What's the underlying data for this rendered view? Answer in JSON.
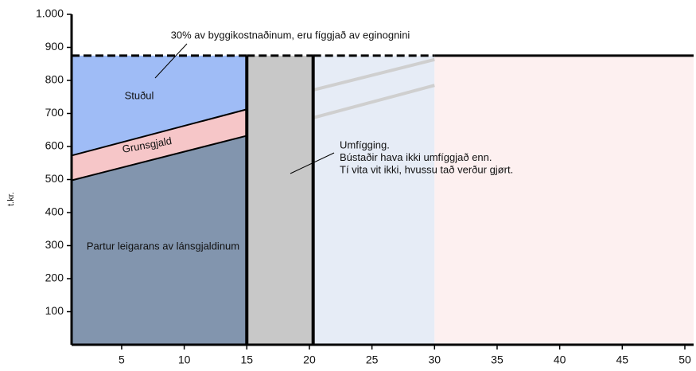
{
  "chart_data": {
    "type": "stacked_area",
    "y_axis_label": "t.kr.",
    "xlim": [
      1,
      50.7
    ],
    "ylim": [
      0,
      1000
    ],
    "xticks": [
      5,
      10,
      15,
      20,
      25,
      30,
      35,
      40,
      45,
      50
    ],
    "yticks": [
      100,
      200,
      300,
      400,
      500,
      600,
      700,
      800,
      900,
      {
        "value": 1000,
        "label": "1.000"
      }
    ],
    "x": [
      1,
      15
    ],
    "series": [
      {
        "name": "Partur leigarans av lánsgjaldinum",
        "color": "#8295ae",
        "values": [
          500,
          635
        ]
      },
      {
        "name": "Grunsgjald",
        "color": "#f6c6c8",
        "values": [
          75,
          80
        ]
      },
      {
        "name": "Stuðul",
        "color": "#9fbcf6",
        "values": [
          300,
          160
        ]
      }
    ],
    "blocks": [
      {
        "x": [
          15,
          20.3
        ],
        "value": 875,
        "color": "#c8c8c8",
        "dashed": true
      },
      {
        "x": [
          20.3,
          30
        ],
        "value": 875,
        "color": "#e6ecf6",
        "dashed": true
      },
      {
        "x": [
          30,
          50.7
        ],
        "value": 875,
        "color": "#fdf0f0",
        "dashed": false
      }
    ],
    "faint_lines": [
      {
        "x": [
          20.3,
          30
        ],
        "values": [
          771,
          863
        ]
      },
      {
        "x": [
          20.3,
          30
        ],
        "values": [
          687,
          785
        ]
      }
    ],
    "annotations": {
      "top": "30% av byggikostnaðinum, eru fíggjað av eginognini",
      "middle": [
        "Umfígging.",
        "Bústaðir hava ikki umfíggjað enn.",
        "Tí vita vit ikki, hvussu tað verður gjørt."
      ]
    }
  }
}
